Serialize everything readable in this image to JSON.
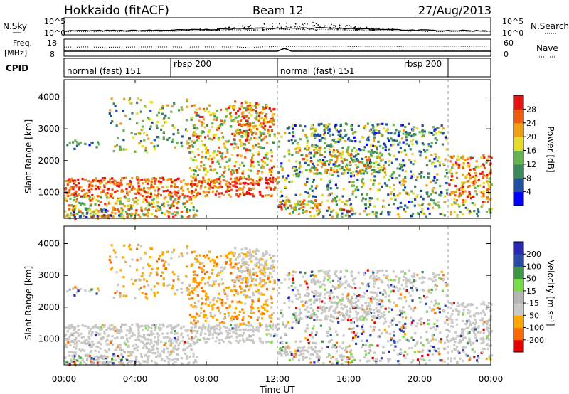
{
  "header": {
    "title": "Hokkaido (fitACF)",
    "beam": "Beam 12",
    "date": "27/Aug/2013"
  },
  "noise_panel": {
    "left_label": "N.Sky",
    "right_label": "N.Search",
    "left_ticks": [
      "10^5",
      "10^0"
    ],
    "right_ticks": [
      "10^5",
      "10^0"
    ]
  },
  "freq_panel": {
    "left_label_top": "Freq.",
    "left_label_bottom": "[MHz]",
    "right_label": "Nave",
    "left_ticks": [
      "18",
      "8"
    ],
    "right_ticks": [
      "60",
      "0"
    ]
  },
  "cpid_panel": {
    "label": "CPID",
    "segments": [
      {
        "label": "normal (fast) 151",
        "start_hour": 0,
        "end_hour": 6
      },
      {
        "label": "rbsp 200",
        "start_hour": 6,
        "end_hour": 12
      },
      {
        "label": "normal (fast) 151",
        "start_hour": 12,
        "end_hour": 21.6
      },
      {
        "label": "rbsp 200",
        "start_hour": 21.6,
        "end_hour": 24
      }
    ]
  },
  "colors": {
    "power": [
      "#0000ff",
      "#2050a0",
      "#3a8a5a",
      "#64b450",
      "#e6dc28",
      "#f0a014",
      "#f05a0a",
      "#e61414"
    ],
    "velocity": [
      "#e60000",
      "#ff6a00",
      "#ffa800",
      "#c8c8c4",
      "#b4b4b4",
      "#78dc46",
      "#3c9646",
      "#2a4ca8",
      "#2828b4"
    ]
  },
  "chart_data": {
    "type": "heatmap",
    "x_axis": {
      "label": "Time UT",
      "range": [
        0,
        24
      ],
      "tick_values": [
        0,
        4,
        8,
        12,
        16,
        20,
        24
      ],
      "tick_labels": [
        "00:00",
        "04:00",
        "08:00",
        "12:00",
        "16:00",
        "20:00",
        "00:00"
      ]
    },
    "power_panel": {
      "ylabel": "Slant Range [km]",
      "ylim": [
        180,
        4550
      ],
      "y_ticks": [
        1000,
        2000,
        3000,
        4000
      ],
      "colorbar_label": "Power [dB]",
      "colorbar_ticks": [
        "28",
        "24",
        "20",
        "16",
        "12",
        "8",
        "4"
      ]
    },
    "velocity_panel": {
      "ylabel": "Slant Range [km]",
      "ylim": [
        180,
        4550
      ],
      "y_ticks": [
        1000,
        2000,
        3000,
        4000
      ],
      "colorbar_label": "Velocity [m s⁻¹]",
      "colorbar_ticks": [
        "200",
        "100",
        "50",
        "15",
        "-15",
        "-50",
        "-100",
        "-200"
      ]
    },
    "scatter_regions": [
      {
        "t0": 0,
        "t1": 12,
        "r0": 900,
        "r1": 1500,
        "density": 0.9,
        "p": [
          18,
          28
        ],
        "v": "gray"
      },
      {
        "t0": 0,
        "t1": 7.5,
        "r0": 250,
        "r1": 900,
        "density": 0.7,
        "p": [
          10,
          26
        ],
        "v": "gray"
      },
      {
        "t0": 0,
        "t1": 4,
        "r0": 200,
        "r1": 500,
        "density": 0.85,
        "p": [
          4,
          26
        ],
        "v": "mixed"
      },
      {
        "t0": 2.5,
        "t1": 7.5,
        "r0": 2300,
        "r1": 4000,
        "density": 0.25,
        "p": [
          6,
          20
        ],
        "v": "orange"
      },
      {
        "t0": 7,
        "t1": 11.8,
        "r0": 1500,
        "r1": 3800,
        "density": 0.5,
        "p": [
          10,
          26
        ],
        "v": "orange"
      },
      {
        "t0": 9.5,
        "t1": 11.8,
        "r0": 2800,
        "r1": 3900,
        "density": 0.6,
        "p": [
          14,
          28
        ],
        "v": "gray"
      },
      {
        "t0": 0,
        "t1": 2,
        "r0": 2400,
        "r1": 2700,
        "density": 0.4,
        "p": [
          4,
          16
        ],
        "v": "mixed"
      },
      {
        "t0": 12,
        "t1": 21.5,
        "r0": 250,
        "r1": 3200,
        "density": 0.35,
        "p": [
          4,
          20
        ],
        "v": "mixed"
      },
      {
        "t0": 12,
        "t1": 16,
        "r0": 400,
        "r1": 800,
        "density": 0.55,
        "p": [
          10,
          26
        ],
        "v": "gray"
      },
      {
        "t0": 13,
        "t1": 18,
        "r0": 1600,
        "r1": 2500,
        "density": 0.65,
        "p": [
          8,
          24
        ],
        "v": "gray"
      },
      {
        "t0": 14,
        "t1": 21,
        "r0": 2600,
        "r1": 3200,
        "density": 0.35,
        "p": [
          4,
          16
        ],
        "v": "gray"
      },
      {
        "t0": 21.6,
        "t1": 24,
        "r0": 700,
        "r1": 2200,
        "density": 0.75,
        "p": [
          14,
          28
        ],
        "v": "gray"
      },
      {
        "t0": 21.6,
        "t1": 24,
        "r0": 250,
        "r1": 700,
        "density": 0.45,
        "p": [
          6,
          20
        ],
        "v": "mixed"
      }
    ]
  }
}
